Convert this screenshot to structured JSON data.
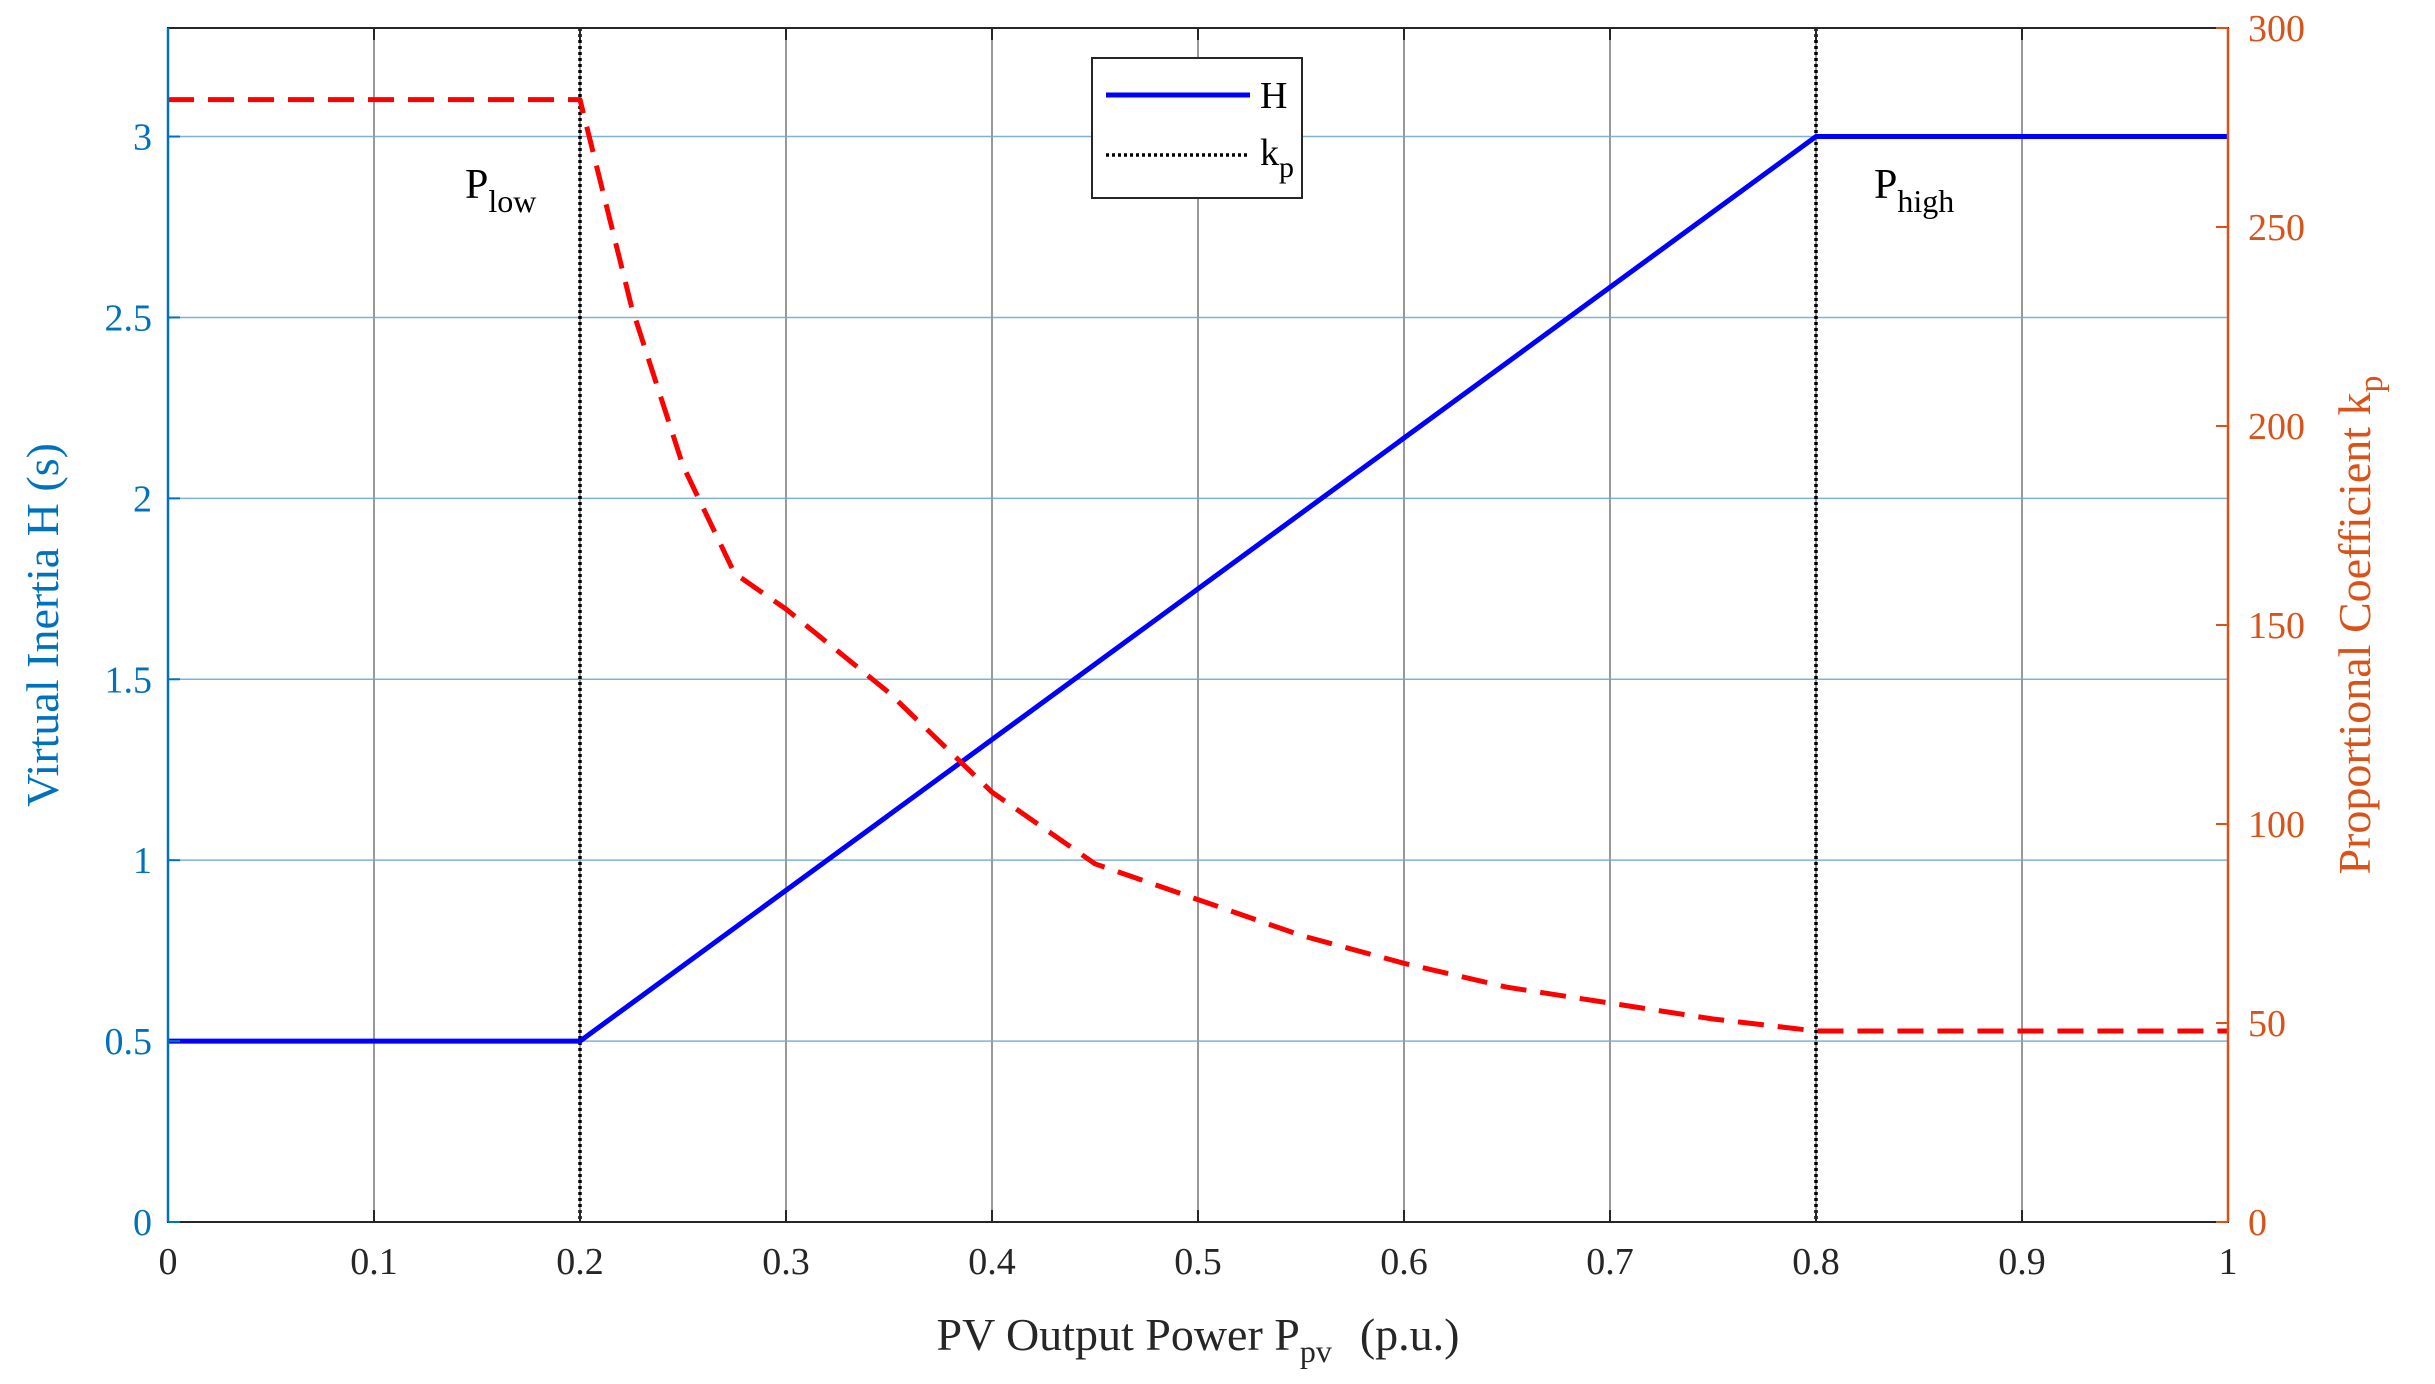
{
  "chart_data": {
    "type": "line",
    "xlabel": "PV Output Power P",
    "xlabel_sub": "pv",
    "xlabel_unit": "(p.u.)",
    "ylabel_left": "Virtual Inertia H (s)",
    "ylabel_right": "Proportional Coefficient k",
    "ylabel_right_sub": "p",
    "xlim": [
      0,
      1
    ],
    "ylim_left": [
      0,
      3.3
    ],
    "ylim_right": [
      0,
      300
    ],
    "x_ticks": [
      "0",
      "0.1",
      "0.2",
      "0.3",
      "0.4",
      "0.5",
      "0.6",
      "0.7",
      "0.8",
      "0.9",
      "1"
    ],
    "y_left_ticks": [
      "0",
      "0.5",
      "1",
      "1.5",
      "2",
      "2.5",
      "3"
    ],
    "y_right_ticks": [
      "0",
      "50",
      "100",
      "150",
      "200",
      "250",
      "300"
    ],
    "grid": true,
    "legend_position": "top-center",
    "series": [
      {
        "name": "H",
        "axis": "left",
        "style": "solid",
        "color": "#0000ff",
        "x": [
          0,
          0.2,
          0.8,
          1
        ],
        "y": [
          0.5,
          0.5,
          3.0,
          3.0
        ]
      },
      {
        "name": "k",
        "name_sub": "p",
        "axis": "right",
        "style": "dashed",
        "color": "#ff0000",
        "x": [
          0,
          0.2,
          0.225,
          0.25,
          0.275,
          0.3,
          0.35,
          0.4,
          0.45,
          0.5,
          0.55,
          0.6,
          0.65,
          0.7,
          0.75,
          0.8,
          1
        ],
        "y": [
          282,
          282,
          230,
          190,
          163,
          154,
          133,
          108,
          90,
          81,
          72,
          65,
          59,
          55,
          51,
          48,
          48
        ]
      }
    ],
    "vertical_markers": [
      {
        "x": 0.2,
        "label": "P",
        "label_sub": "low"
      },
      {
        "x": 0.8,
        "label": "P",
        "label_sub": "high"
      }
    ],
    "colors": {
      "left_axis": "#0072bd",
      "right_axis": "#d95319",
      "grid_horizontal": "#6fa8d6",
      "grid_vertical": "#555555"
    }
  }
}
